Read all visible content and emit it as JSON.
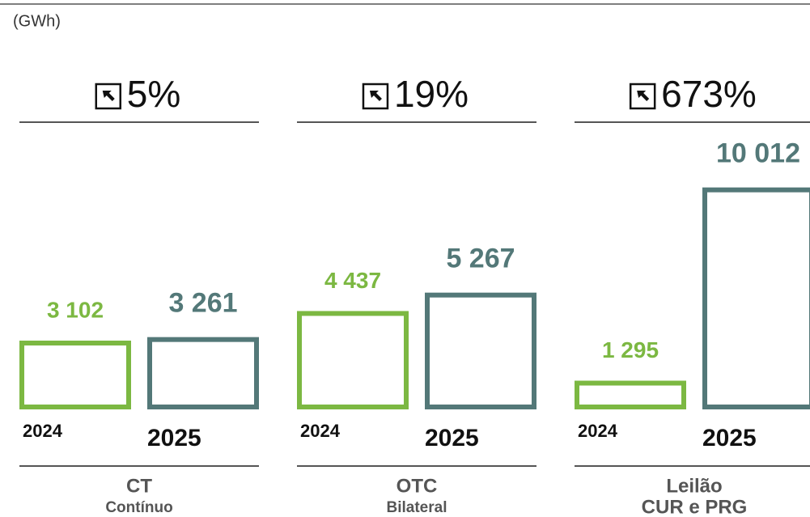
{
  "chart_data": {
    "type": "bar",
    "unit_label": "(GWh)",
    "categories": [
      "CT",
      "OTC",
      "Leilão"
    ],
    "category_subtitles": [
      "Contínuo",
      "Bilateral",
      "CUR e PRG"
    ],
    "change_labels": [
      "5%",
      "19%",
      "673%"
    ],
    "series": [
      {
        "name": "2024",
        "color": "#7cb842",
        "values": [
          3102,
          4437,
          1295
        ],
        "value_labels": [
          "3 102",
          "4 437",
          "1 295"
        ]
      },
      {
        "name": "2025",
        "color": "#537878",
        "values": [
          3261,
          5267,
          10012
        ],
        "value_labels": [
          "3 261",
          "5 267",
          "10 012"
        ]
      }
    ],
    "ylim": [
      0,
      10500
    ]
  }
}
